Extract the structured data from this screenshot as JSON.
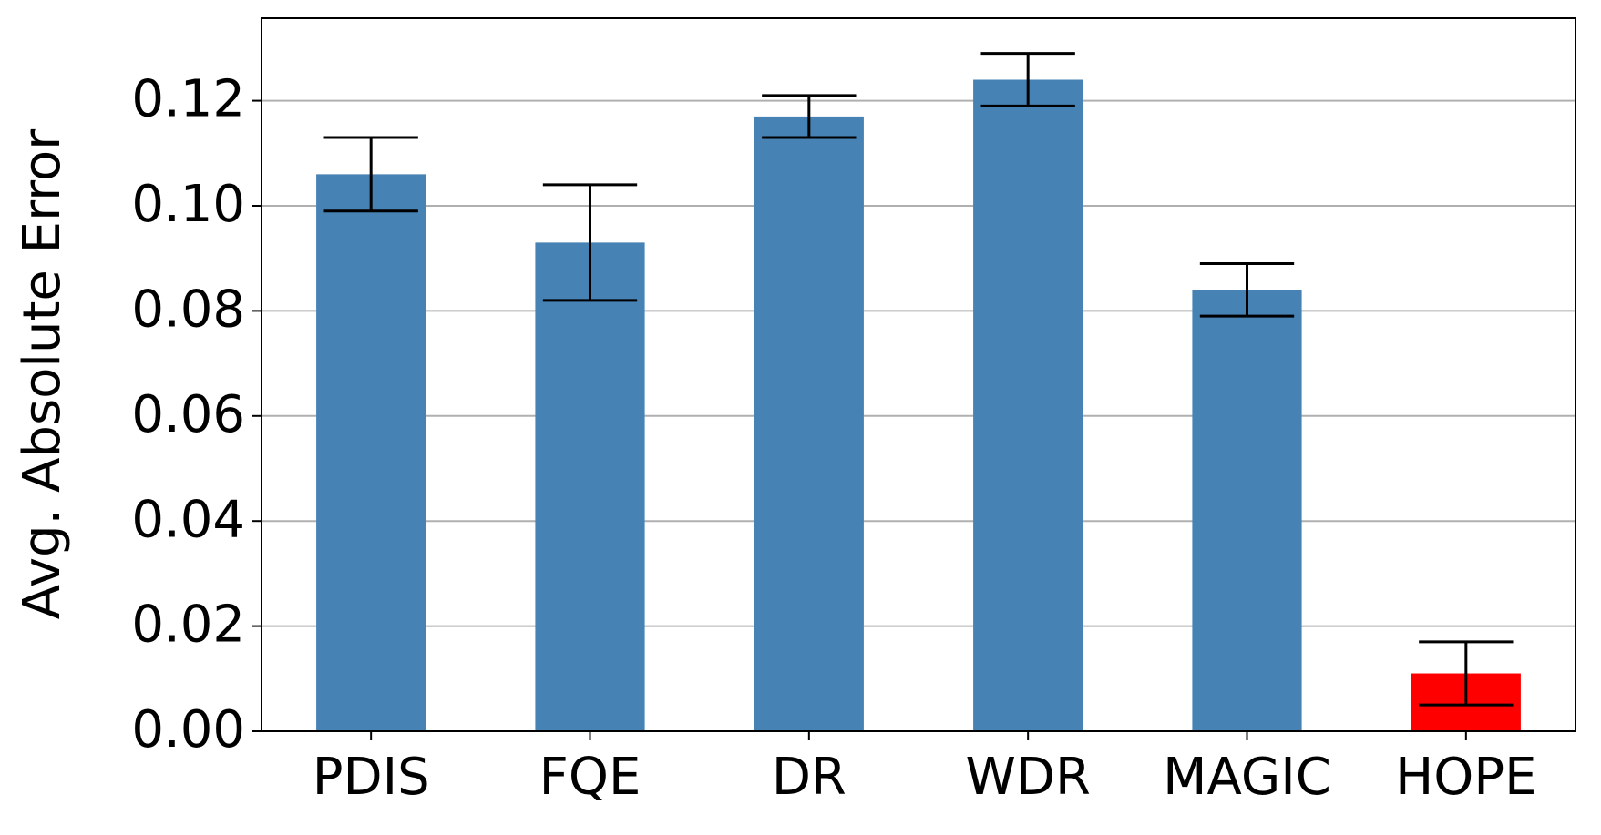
{
  "chart_data": {
    "type": "bar",
    "y_label": "Avg. Absolute Error",
    "categories": [
      "PDIS",
      "FQE",
      "DR",
      "WDR",
      "MAGIC",
      "HOPE"
    ],
    "values": [
      0.106,
      0.093,
      0.117,
      0.124,
      0.084,
      0.011
    ],
    "errors": [
      0.007,
      0.011,
      0.004,
      0.005,
      0.005,
      0.006
    ],
    "colors": [
      "#4682b4",
      "#4682b4",
      "#4682b4",
      "#4682b4",
      "#4682b4",
      "#ff0000"
    ],
    "error_color": "#000000",
    "ylim": [
      0,
      0.1357
    ],
    "yticks": [
      {
        "value": 0,
        "label": "0.00"
      },
      {
        "value": 0.02,
        "label": "0.02"
      },
      {
        "value": 0.04,
        "label": "0.04"
      },
      {
        "value": 0.06,
        "label": "0.06"
      },
      {
        "value": 0.08,
        "label": "0.08"
      },
      {
        "value": 0.1,
        "label": "0.10"
      },
      {
        "value": 0.12,
        "label": "0.12"
      }
    ],
    "grid": true
  }
}
